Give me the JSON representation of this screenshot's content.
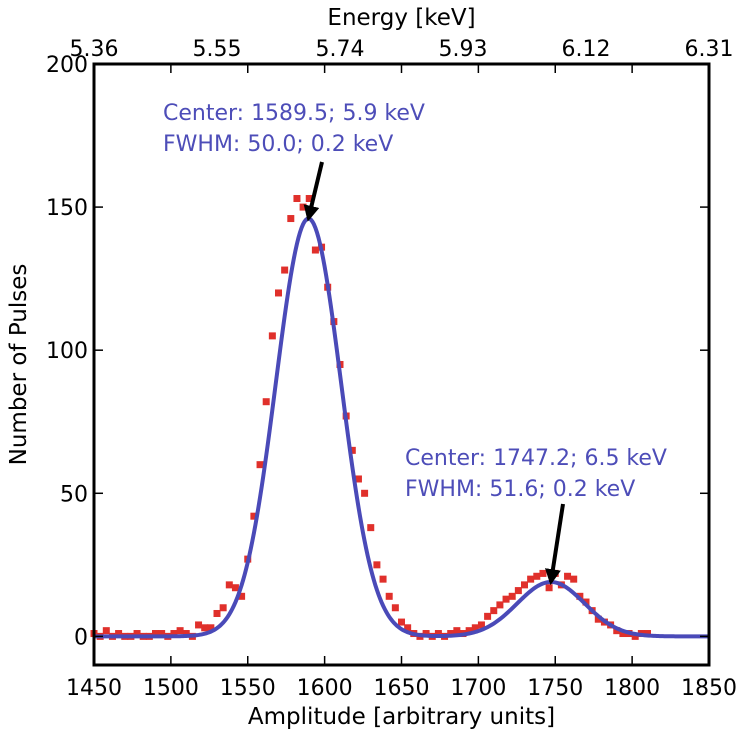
{
  "chart_data": {
    "type": "scatter",
    "title": "",
    "xlabel": "Amplitude [arbitrary units]",
    "ylabel": "Number of Pulses",
    "top_xlabel": "Energy [keV]",
    "xlim": [
      1450,
      1850
    ],
    "ylim": [
      -10,
      200
    ],
    "x_ticks": [
      "1450",
      "1500",
      "1550",
      "1600",
      "1650",
      "1700",
      "1750",
      "1800",
      "1850"
    ],
    "y_ticks": [
      "0",
      "50",
      "100",
      "150",
      "200"
    ],
    "top_ticks": [
      "5.36",
      "5.55",
      "5.74",
      "5.93",
      "6.12",
      "6.31"
    ],
    "colors": {
      "data": "#e0302b",
      "fit": "#4a4ab8",
      "annotation": "#4d4db8"
    },
    "series": [
      {
        "kind": "points",
        "x": [
          1450,
          1454,
          1458,
          1462,
          1466,
          1470,
          1474,
          1478,
          1482,
          1486,
          1490,
          1494,
          1498,
          1502,
          1506,
          1510,
          1514,
          1518,
          1522,
          1526,
          1530,
          1534,
          1538,
          1542,
          1546,
          1550,
          1554,
          1558,
          1562,
          1566,
          1570,
          1574,
          1578,
          1582,
          1586,
          1590,
          1594,
          1598,
          1602,
          1606,
          1610,
          1614,
          1618,
          1622,
          1626,
          1630,
          1634,
          1638,
          1642,
          1646,
          1650,
          1654,
          1658,
          1662,
          1666,
          1670,
          1674,
          1678,
          1682,
          1686,
          1690,
          1694,
          1698,
          1702,
          1706,
          1710,
          1714,
          1718,
          1722,
          1726,
          1730,
          1734,
          1738,
          1742,
          1746,
          1750,
          1754,
          1758,
          1762,
          1766,
          1770,
          1774,
          1778,
          1782,
          1786,
          1790,
          1794,
          1798,
          1802,
          1806,
          1810
        ],
        "y": [
          1,
          0,
          2,
          0,
          1,
          0,
          0,
          1,
          0,
          0,
          1,
          1,
          0,
          1,
          2,
          1,
          0,
          4,
          3,
          3,
          8,
          10,
          18,
          17,
          14,
          27,
          42,
          60,
          82,
          105,
          120,
          128,
          146,
          153,
          150,
          153,
          135,
          136,
          122,
          110,
          95,
          77,
          65,
          55,
          50,
          38,
          25,
          20,
          14,
          10,
          5,
          3,
          1,
          0,
          1,
          0,
          1,
          0,
          1,
          2,
          1,
          2,
          3,
          4,
          7,
          9,
          11,
          13,
          14,
          16,
          18,
          20,
          21,
          22,
          17,
          22,
          18,
          21,
          20,
          14,
          12,
          9,
          6,
          5,
          4,
          2,
          1,
          1,
          0,
          1,
          1
        ]
      },
      {
        "kind": "fit",
        "peaks": [
          {
            "center": 1589.5,
            "amplitude": 146,
            "fwhm": 50.0
          },
          {
            "center": 1747.2,
            "amplitude": 19,
            "fwhm": 51.6
          }
        ]
      }
    ],
    "annotations": [
      {
        "line1": "Center: 1589.5; 5.9 keV",
        "line2": "FWHM: 50.0; 0.2 keV",
        "arrow_to": [
          1589.5,
          146
        ]
      },
      {
        "line1": "Center: 1747.2; 6.5 keV",
        "line2": "FWHM: 51.6; 0.2 keV",
        "arrow_to": [
          1747.2,
          19
        ]
      }
    ]
  }
}
